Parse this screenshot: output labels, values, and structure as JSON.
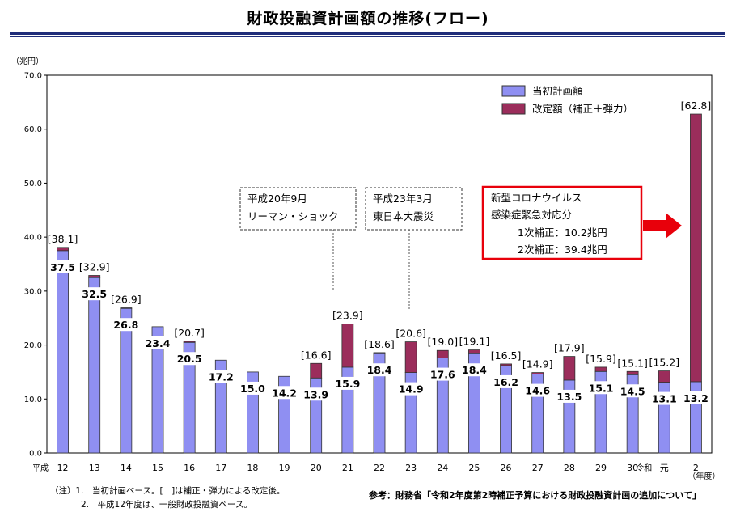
{
  "title": "財政投融資計画額の推移(フロー)",
  "chart_data": {
    "type": "bar",
    "stacked": true,
    "y_unit_label": "（兆円）",
    "ylim": [
      0,
      70
    ],
    "y_ticks": [
      "0.0",
      "10.0",
      "20.0",
      "30.0",
      "40.0",
      "50.0",
      "60.0",
      "70.0"
    ],
    "x_prefix_label": "平成",
    "x_suffix_label": "（年度）",
    "era_label": "令和",
    "categories": [
      "12",
      "13",
      "14",
      "15",
      "16",
      "17",
      "18",
      "19",
      "20",
      "21",
      "22",
      "23",
      "24",
      "25",
      "26",
      "27",
      "28",
      "29",
      "30",
      "元",
      "2"
    ],
    "series": [
      {
        "name": "当初計画額",
        "color": "#8f8ff2",
        "values": [
          37.5,
          32.5,
          26.8,
          23.4,
          20.5,
          17.2,
          15.0,
          14.2,
          13.9,
          15.9,
          18.4,
          14.9,
          17.6,
          18.4,
          16.2,
          14.6,
          13.5,
          15.1,
          14.5,
          13.1,
          13.2
        ]
      },
      {
        "name": "改定額（補正＋弾力）",
        "color": "#9b2d5b",
        "values": [
          0.6,
          0.4,
          0.1,
          0,
          0.2,
          0,
          0,
          0,
          2.7,
          8.0,
          0.2,
          5.7,
          1.4,
          0.7,
          0.3,
          0.3,
          4.4,
          0.8,
          0.6,
          2.1,
          49.6
        ]
      }
    ],
    "base_labels": [
      "37.5",
      "32.5",
      "26.8",
      "23.4",
      "20.5",
      "17.2",
      "15.0",
      "14.2",
      "13.9",
      "15.9",
      "18.4",
      "14.9",
      "17.6",
      "18.4",
      "16.2",
      "14.6",
      "13.5",
      "15.1",
      "14.5",
      "13.1",
      "13.2"
    ],
    "total_labels": [
      "[38.1]",
      "[32.9]",
      "[26.9]",
      "",
      "[20.7]",
      "",
      "",
      "",
      "[16.6]",
      "[23.9]",
      "[18.6]",
      "[20.6]",
      "[19.0]",
      "[19.1]",
      "[16.5]",
      "[14.9]",
      "[17.9]",
      "[15.9]",
      "[15.1]",
      "[15.2]",
      "[62.8]"
    ],
    "legend_position": "top-right",
    "annotations": {
      "lehman": [
        "平成20年9月",
        "リーマン・ショック"
      ],
      "quake": [
        "平成23年3月",
        "東日本大震災"
      ],
      "corona": [
        "新型コロナウイルス",
        "感染症緊急対応分",
        "1次補正：10.2兆円",
        "2次補正：39.4兆円"
      ]
    }
  },
  "notes": {
    "note1": "（注）1.　当初計画ベース。[　]は補正・弾力による改定後。",
    "note2": "2.　平成12年度は、一般財政投融資ベース。"
  },
  "source": "参考：財務省「令和2年度第2時補正予算における財政投融資計画の追加について」",
  "colors": {
    "base": "#8f8ff2",
    "revised": "#9b2d5b",
    "callout_border": "#e8000b",
    "arrow": "#e8000b"
  }
}
